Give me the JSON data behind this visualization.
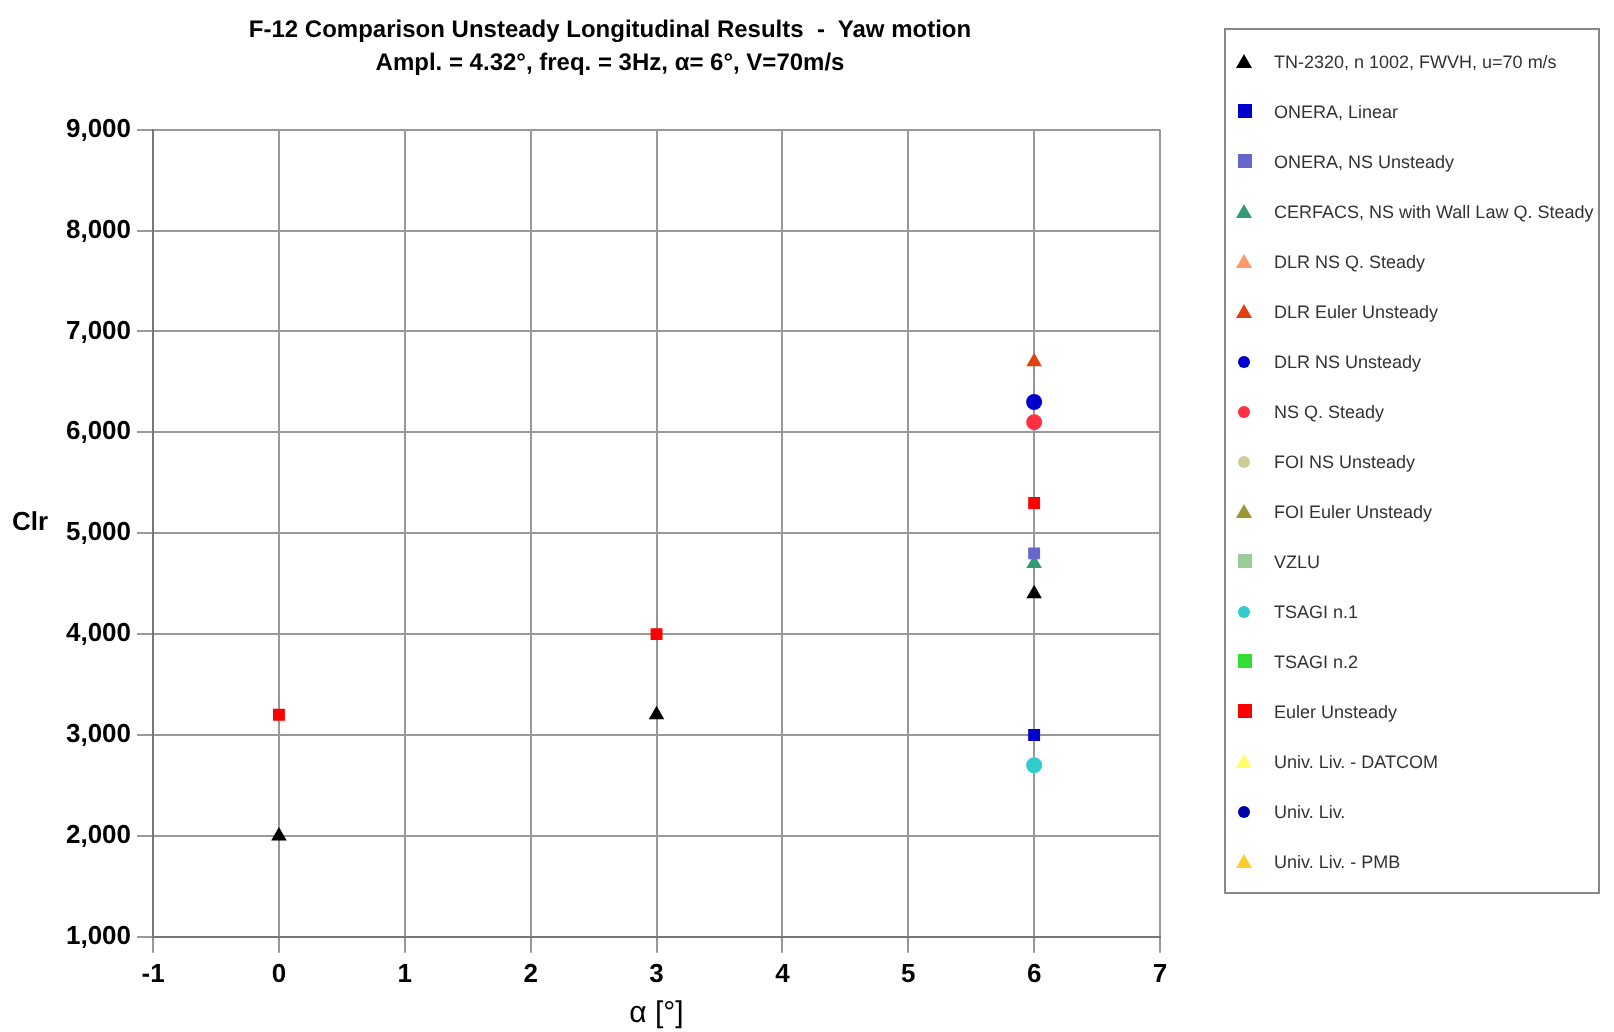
{
  "chart_data": {
    "type": "scatter",
    "title": "F-12 Comparison Unsteady Longitudinal Results  -  Yaw motion",
    "subtitle": "Ampl. = 4.32°, freq. = 3Hz, α= 6°, V=70m/s",
    "xlabel": "α [°]",
    "ylabel": "Clr",
    "xlim": [
      -1,
      7
    ],
    "xticks": [
      -1,
      0,
      1,
      2,
      3,
      4,
      5,
      6,
      7
    ],
    "ylim": [
      1000,
      9000
    ],
    "yticks": [
      {
        "value": 1000,
        "label": "1,000"
      },
      {
        "value": 2000,
        "label": "2,000"
      },
      {
        "value": 3000,
        "label": "3,000"
      },
      {
        "value": 4000,
        "label": "4,000"
      },
      {
        "value": 5000,
        "label": "5,000"
      },
      {
        "value": 6000,
        "label": "6,000"
      },
      {
        "value": 7000,
        "label": "7,000"
      },
      {
        "value": 8000,
        "label": "8,000"
      },
      {
        "value": 9000,
        "label": "9,000"
      }
    ],
    "grid": true,
    "legend": "right",
    "series": [
      {
        "name": "TN-2320, n 1002, FWVH, u=70 m/s",
        "color": "#000000",
        "marker": "triangle",
        "x": [
          0,
          3,
          6
        ],
        "values": [
          2000,
          3200,
          4400
        ]
      },
      {
        "name": "ONERA, Linear",
        "color": "#0000cc",
        "marker": "square",
        "x": [
          6
        ],
        "values": [
          3000
        ]
      },
      {
        "name": "ONERA, NS Unsteady",
        "color": "#6666cc",
        "marker": "square",
        "x": [
          6
        ],
        "values": [
          4800
        ]
      },
      {
        "name": "CERFACS, NS with Wall Law Q. Steady",
        "color": "#339977",
        "marker": "triangle",
        "x": [
          6
        ],
        "values": [
          4700
        ]
      },
      {
        "name": "DLR NS Q. Steady",
        "color": "#ff9966",
        "marker": "triangle"
      },
      {
        "name": "DLR Euler Unsteady",
        "color": "#e04010",
        "marker": "triangle",
        "x": [
          6
        ],
        "values": [
          6700
        ]
      },
      {
        "name": "DLR NS Unsteady",
        "color": "#0000cc",
        "marker": "circle",
        "x": [
          6
        ],
        "values": [
          6300
        ]
      },
      {
        "name": "NS Q. Steady",
        "color": "#ff3040",
        "marker": "circle",
        "x": [
          6
        ],
        "values": [
          6100
        ]
      },
      {
        "name": "FOI NS Unsteady",
        "color": "#cccc99",
        "marker": "circle"
      },
      {
        "name": "FOI Euler Unsteady",
        "color": "#999933",
        "marker": "triangle"
      },
      {
        "name": "VZLU",
        "color": "#99cc99",
        "marker": "square"
      },
      {
        "name": "TSAGI n.1",
        "color": "#33cccc",
        "marker": "circle",
        "x": [
          6
        ],
        "values": [
          2700
        ]
      },
      {
        "name": "TSAGI n.2",
        "color": "#33dd33",
        "marker": "square"
      },
      {
        "name": "Euler Unsteady",
        "color": "#ff0000",
        "marker": "square",
        "x": [
          0,
          3,
          6
        ],
        "values": [
          3200,
          4000,
          5300
        ]
      },
      {
        "name": "Univ. Liv. - DATCOM",
        "color": "#ffff66",
        "marker": "triangle"
      },
      {
        "name": "Univ. Liv.",
        "color": "#0000aa",
        "marker": "circle"
      },
      {
        "name": "Univ. Liv. - PMB",
        "color": "#ffcc33",
        "marker": "triangle"
      }
    ]
  }
}
